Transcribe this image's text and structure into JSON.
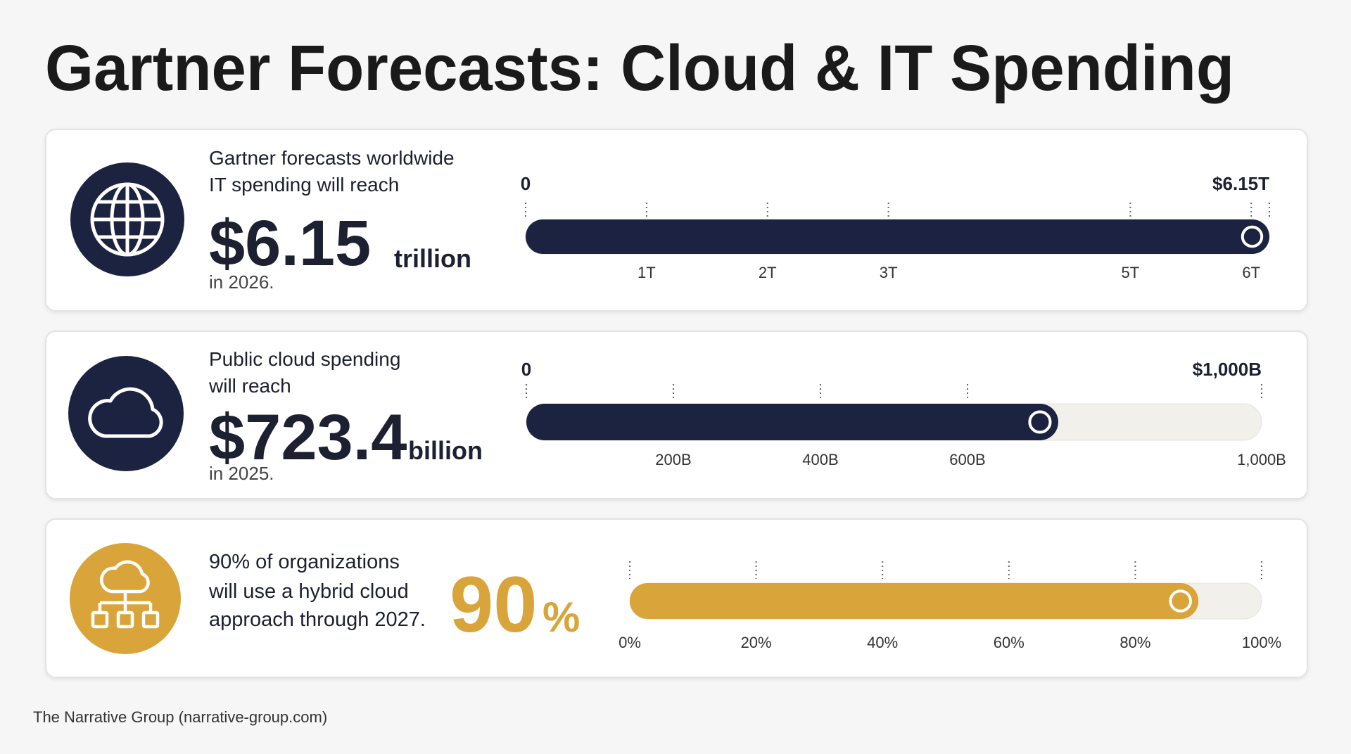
{
  "title": "Gartner Forecasts: Cloud & IT Spending",
  "cards": [
    {
      "intro": [
        "Gartner forecasts worldwide",
        "IT spending will reach"
      ],
      "value": 6.15,
      "value_label": "$6.15",
      "unit": "trillion",
      "outro": "in 2026.",
      "color": "#1c2340",
      "xlim": [
        0,
        6.15
      ],
      "end_ticks": [
        0,
        {
          "value": 6.15,
          "label": "$6.15T"
        }
      ],
      "ticks": [
        {
          "value": 1,
          "label": "1T"
        },
        {
          "value": 2,
          "label": "2T"
        },
        {
          "value": 3,
          "label": "3T"
        },
        {
          "value": 5,
          "label": "5T"
        },
        {
          "value": 6,
          "label": "6T"
        }
      ]
    },
    {
      "intro": [
        "Public cloud spending",
        "will reach"
      ],
      "value": 723.4,
      "value_label": "$723.4",
      "unit": "billion",
      "outro": "in 2025.",
      "color": "#1c2340",
      "xlim": [
        0,
        1000
      ],
      "end_ticks": [
        0,
        {
          "value": 1000,
          "label": "$1,000B"
        }
      ],
      "ticks": [
        {
          "value": 200,
          "label": "200B"
        },
        {
          "value": 400,
          "label": "400B"
        },
        {
          "value": 600,
          "label": "600B"
        },
        {
          "value": 1000,
          "label": "1,000B"
        }
      ]
    },
    {
      "intro": [
        "90% of organizations",
        "will use a hybrid cloud",
        "approach through 2027."
      ],
      "value": 90,
      "value_label": "90",
      "unit": "%",
      "color": "#d9a53a",
      "xlim": [
        0,
        100
      ],
      "ticks": [
        {
          "value": 0,
          "label": "0%"
        },
        {
          "value": 20,
          "label": "20%"
        },
        {
          "value": 40,
          "label": "40%"
        },
        {
          "value": 60,
          "label": "60%"
        },
        {
          "value": 80,
          "label": "80%"
        },
        {
          "value": 100,
          "label": "100%"
        }
      ]
    }
  ],
  "footer": "The Narrative Group (narrative-group.com)"
}
